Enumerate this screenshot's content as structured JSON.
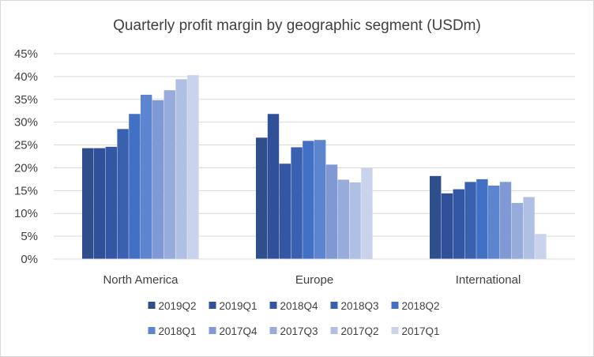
{
  "chart_data": {
    "type": "bar",
    "title": "Quarterly profit margin by geographic segment (USDm)",
    "xlabel": "",
    "ylabel": "",
    "categories": [
      "North America",
      "Europe",
      "International"
    ],
    "ylim": [
      0,
      45
    ],
    "yticks": [
      "0%",
      "5%",
      "10%",
      "15%",
      "20%",
      "25%",
      "30%",
      "35%",
      "40%",
      "45%"
    ],
    "grid": true,
    "legend_position": "bottom",
    "series": [
      {
        "name": "2019Q2",
        "color": "#2f4e8c",
        "values": [
          24.3,
          26.6,
          18.2
        ]
      },
      {
        "name": "2019Q1",
        "color": "#30519a",
        "values": [
          24.3,
          31.8,
          14.4
        ]
      },
      {
        "name": "2018Q4",
        "color": "#3456a3",
        "values": [
          24.6,
          20.9,
          15.3
        ]
      },
      {
        "name": "2018Q3",
        "color": "#3a60b0",
        "values": [
          28.5,
          24.5,
          16.9
        ]
      },
      {
        "name": "2018Q2",
        "color": "#4270c4",
        "values": [
          31.8,
          25.9,
          17.5
        ]
      },
      {
        "name": "2018Q1",
        "color": "#5d84cf",
        "values": [
          36.0,
          26.1,
          16.1
        ]
      },
      {
        "name": "2017Q4",
        "color": "#8098d3",
        "values": [
          34.8,
          20.7,
          16.9
        ]
      },
      {
        "name": "2017Q3",
        "color": "#98acdc",
        "values": [
          37.0,
          17.4,
          12.3
        ]
      },
      {
        "name": "2017Q2",
        "color": "#b0c0e4",
        "values": [
          39.4,
          16.8,
          13.6
        ]
      },
      {
        "name": "2017Q1",
        "color": "#c9d3ec",
        "values": [
          40.3,
          19.9,
          5.5
        ]
      }
    ]
  }
}
